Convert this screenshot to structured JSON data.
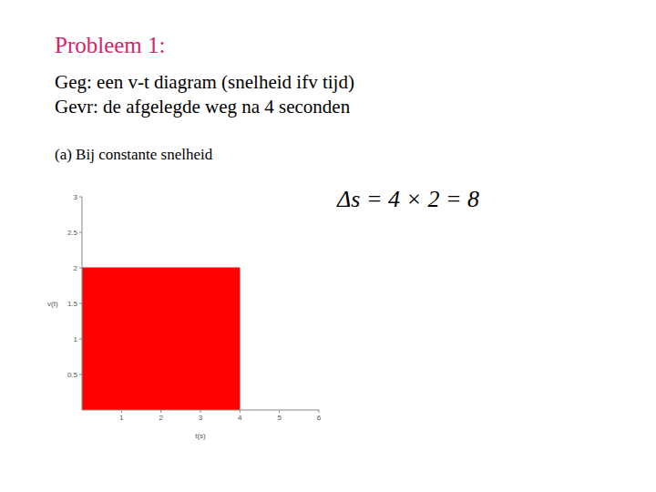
{
  "slide": {
    "title": "Probleem 1:",
    "lines": [
      "Geg: een v-t diagram (snelheid ifv tijd)",
      "Gevr: de afgelegde weg na 4 seconden"
    ],
    "subtitle": "(a) Bij constante snelheid",
    "formula": "Δs = 4 × 2 = 8"
  },
  "chart_data": {
    "type": "area",
    "x_label": "t(s)",
    "y_label": "v(t)",
    "x": [
      0,
      4
    ],
    "values": [
      2,
      2
    ],
    "color": "#ff0000",
    "xlim": [
      0,
      6
    ],
    "xticks": [
      1,
      2,
      3,
      4,
      5,
      6
    ],
    "ylim": [
      0,
      3
    ],
    "yticks": [
      0.5,
      1,
      1.5,
      2,
      2.5,
      3
    ],
    "grid": false
  }
}
